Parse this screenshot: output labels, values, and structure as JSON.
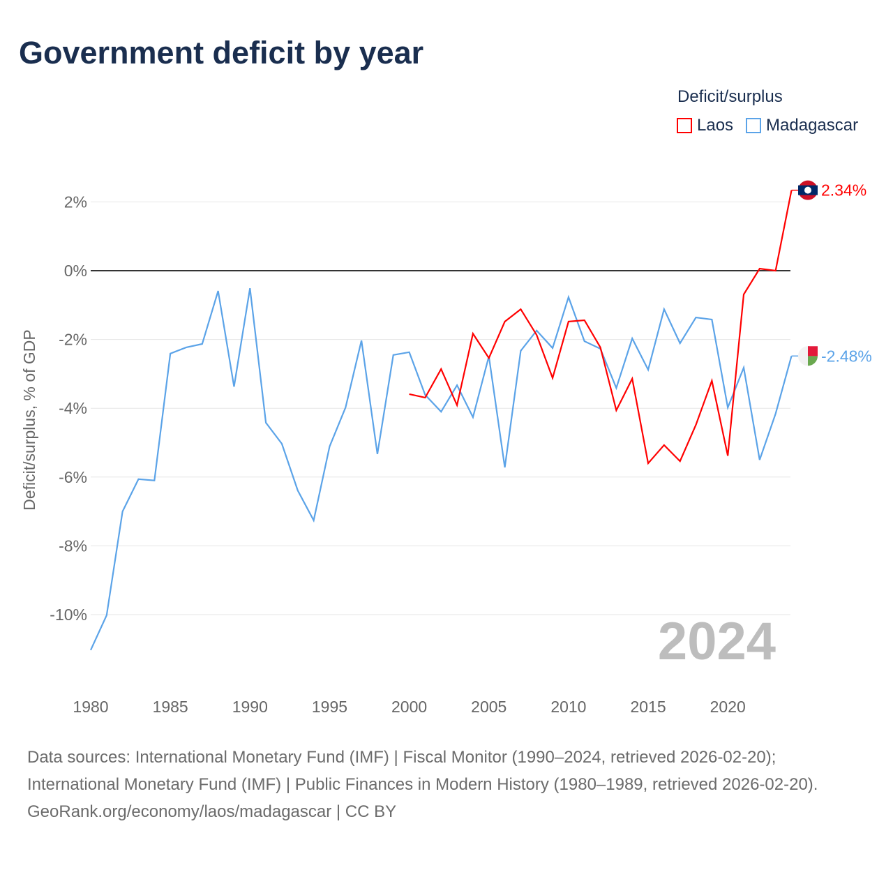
{
  "title": "Government deficit by year",
  "legend": {
    "title": "Deficit/surplus",
    "items": [
      {
        "name": "Laos",
        "color": "#ff0000"
      },
      {
        "name": "Madagascar",
        "color": "#5ba3e8"
      }
    ]
  },
  "footer": {
    "sources": "Data sources: International Monetary Fund (IMF) | Fiscal Monitor (1990–2024, retrieved 2026-02-20); International Monetary Fund (IMF) | Public Finances in Modern History (1980–1989, retrieved 2026-02-20).",
    "credit": "GeoRank.org/economy/laos/madagascar | CC BY"
  },
  "chart_data": {
    "type": "line",
    "title": "Government deficit by year",
    "xlabel": "",
    "ylabel": "Deficit/surplus, % of GDP",
    "xlim": [
      1980,
      2024
    ],
    "ylim": [
      -11,
      2.5
    ],
    "x_ticks": [
      1980,
      1985,
      1990,
      1995,
      2000,
      2005,
      2010,
      2015,
      2020
    ],
    "y_ticks": [
      2,
      0,
      -2,
      -4,
      -6,
      -8,
      -10
    ],
    "y_tick_labels": [
      "2%",
      "0%",
      "-2%",
      "-4%",
      "-6%",
      "-8%",
      "-10%"
    ],
    "year_watermark": "2024",
    "series": [
      {
        "name": "Laos",
        "color": "#ff0000",
        "end_label": "2.34%",
        "x": [
          2000,
          2001,
          2002,
          2003,
          2004,
          2005,
          2006,
          2007,
          2008,
          2009,
          2010,
          2011,
          2012,
          2013,
          2014,
          2015,
          2016,
          2017,
          2018,
          2019,
          2020,
          2021,
          2022,
          2023,
          2024
        ],
        "values": [
          -3.59,
          -3.69,
          -2.86,
          -3.91,
          -1.83,
          -2.54,
          -1.48,
          -1.12,
          -1.87,
          -3.12,
          -1.48,
          -1.44,
          -2.23,
          -4.06,
          -3.14,
          -5.6,
          -5.07,
          -5.54,
          -4.48,
          -3.2,
          -5.38,
          -0.69,
          0.06,
          0.0,
          2.34
        ]
      },
      {
        "name": "Madagascar",
        "color": "#5ba3e8",
        "end_label": "-2.48%",
        "x": [
          1980,
          1981,
          1982,
          1983,
          1984,
          1985,
          1986,
          1987,
          1988,
          1989,
          1990,
          1991,
          1992,
          1993,
          1994,
          1995,
          1996,
          1997,
          1998,
          1999,
          2000,
          2001,
          2002,
          2003,
          2004,
          2005,
          2006,
          2007,
          2008,
          2009,
          2010,
          2011,
          2012,
          2013,
          2014,
          2015,
          2016,
          2017,
          2018,
          2019,
          2020,
          2021,
          2022,
          2023,
          2024
        ],
        "values": [
          -11.03,
          -10.02,
          -7.0,
          -6.06,
          -6.1,
          -2.41,
          -2.23,
          -2.13,
          -0.59,
          -3.37,
          -0.51,
          -4.42,
          -5.03,
          -6.39,
          -7.26,
          -5.11,
          -3.98,
          -2.03,
          -5.33,
          -2.45,
          -2.37,
          -3.61,
          -4.1,
          -3.33,
          -4.26,
          -2.49,
          -5.72,
          -2.33,
          -1.74,
          -2.25,
          -0.77,
          -2.05,
          -2.27,
          -3.41,
          -1.97,
          -2.88,
          -1.12,
          -2.11,
          -1.36,
          -1.42,
          -3.98,
          -2.82,
          -5.5,
          -4.16,
          -2.48
        ]
      }
    ]
  }
}
